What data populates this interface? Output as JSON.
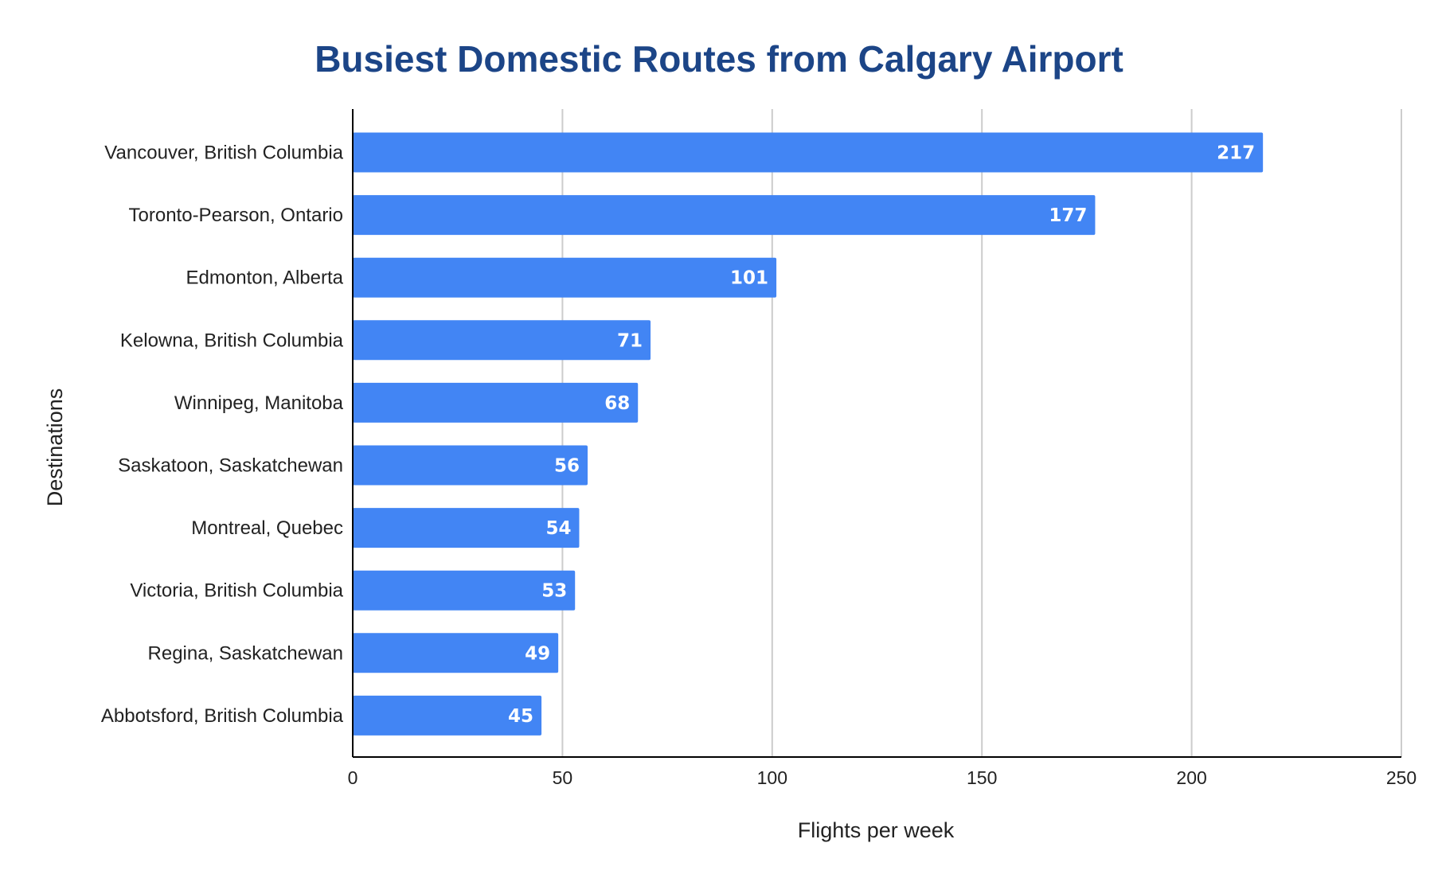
{
  "colors": {
    "bar": "#4285f4",
    "title": "#1c4587",
    "grid": "#cccccc",
    "axis": "#000000",
    "data_label": "#ffffff"
  },
  "chart_data": {
    "type": "bar",
    "orientation": "horizontal",
    "title": "Busiest Domestic Routes from Calgary Airport",
    "xlabel": "Flights per week",
    "ylabel": "Destinations",
    "categories": [
      "Vancouver, British Columbia",
      "Toronto-Pearson, Ontario",
      "Edmonton, Alberta",
      "Kelowna, British Columbia",
      "Winnipeg, Manitoba",
      "Saskatoon, Saskatchewan",
      "Montreal, Quebec",
      "Victoria, British Columbia",
      "Regina, Saskatchewan",
      "Abbotsford, British Columbia"
    ],
    "values": [
      217,
      177,
      101,
      71,
      68,
      56,
      54,
      53,
      49,
      45
    ],
    "xlim": [
      0,
      250
    ],
    "xticks": [
      0,
      50,
      100,
      150,
      200,
      250
    ],
    "grid": true,
    "data_labels": true,
    "legend": "none"
  }
}
